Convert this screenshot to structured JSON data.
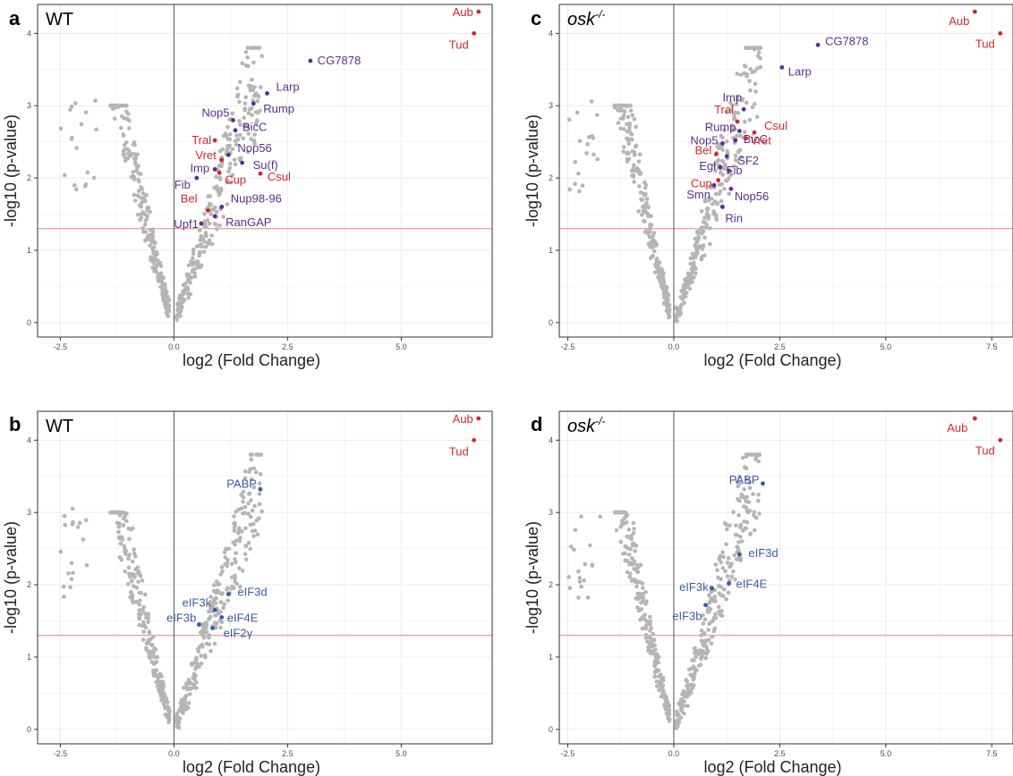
{
  "colors": {
    "point_grey": "#b5b5b5",
    "highlight_red": "#d62728",
    "highlight_purple": "#5a2d91",
    "highlight_blue": "#3a5ba8",
    "threshold_red": "#f08080",
    "grid": "#ebebeb",
    "panel_border": "#333333"
  },
  "chart_data": [
    {
      "panel": "a",
      "title": "WT",
      "type": "scatter",
      "xlabel": "log2 (Fold Change)",
      "ylabel": "-log10 (p-value)",
      "xlim": [
        -3.0,
        7.0
      ],
      "ylim": [
        -0.2,
        4.4
      ],
      "xticks": [
        "-2.5",
        "0.0",
        "2.5",
        "5.0"
      ],
      "yticks": [
        "0",
        "1",
        "2",
        "3",
        "4"
      ],
      "threshold_y": 1.3,
      "grid": true,
      "highlights": [
        {
          "label": "Aub",
          "x": 6.7,
          "y": 4.3,
          "color": "red"
        },
        {
          "label": "Tud",
          "x": 6.6,
          "y": 4.0,
          "color": "red"
        },
        {
          "label": "CG7878",
          "x": 3.0,
          "y": 3.62,
          "color": "purple"
        },
        {
          "label": "Larp",
          "x": 2.05,
          "y": 3.17,
          "color": "purple"
        },
        {
          "label": "Rump",
          "x": 1.75,
          "y": 3.03,
          "color": "purple"
        },
        {
          "label": "Nop5",
          "x": 1.3,
          "y": 2.8,
          "color": "purple"
        },
        {
          "label": "BicC",
          "x": 1.35,
          "y": 2.66,
          "color": "purple"
        },
        {
          "label": "Tral",
          "x": 0.9,
          "y": 2.52,
          "color": "red"
        },
        {
          "label": "Nop56",
          "x": 1.2,
          "y": 2.32,
          "color": "purple"
        },
        {
          "label": "Vret",
          "x": 1.05,
          "y": 2.25,
          "color": "red"
        },
        {
          "label": "Su(f)",
          "x": 1.5,
          "y": 2.21,
          "color": "purple"
        },
        {
          "label": "Imp",
          "x": 0.9,
          "y": 2.12,
          "color": "purple"
        },
        {
          "label": "Fib",
          "x": 0.5,
          "y": 2.0,
          "color": "purple"
        },
        {
          "label": "Cup",
          "x": 1.0,
          "y": 2.07,
          "color": "red"
        },
        {
          "label": "Csul",
          "x": 1.9,
          "y": 2.06,
          "color": "red"
        },
        {
          "label": "Bel",
          "x": 0.75,
          "y": 1.55,
          "color": "red"
        },
        {
          "label": "Nup98-96",
          "x": 1.05,
          "y": 1.6,
          "color": "purple"
        },
        {
          "label": "Upf1",
          "x": 0.6,
          "y": 1.37,
          "color": "purple"
        },
        {
          "label": "RanGAP",
          "x": 0.9,
          "y": 1.47,
          "color": "purple"
        }
      ]
    },
    {
      "panel": "b",
      "title": "WT",
      "type": "scatter",
      "xlabel": "log2 (Fold Change)",
      "ylabel": "-log10 (p-value)",
      "xlim": [
        -3.0,
        7.0
      ],
      "ylim": [
        -0.2,
        4.4
      ],
      "xticks": [
        "-2.5",
        "0.0",
        "2.5",
        "5.0"
      ],
      "yticks": [
        "0",
        "1",
        "2",
        "3",
        "4"
      ],
      "threshold_y": 1.3,
      "grid": true,
      "highlights": [
        {
          "label": "Aub",
          "x": 6.7,
          "y": 4.3,
          "color": "red"
        },
        {
          "label": "Tud",
          "x": 6.6,
          "y": 4.0,
          "color": "red"
        },
        {
          "label": "PABP",
          "x": 1.9,
          "y": 3.32,
          "color": "blue"
        },
        {
          "label": "eIF3d",
          "x": 1.2,
          "y": 1.87,
          "color": "blue"
        },
        {
          "label": "eIF3k",
          "x": 0.9,
          "y": 1.65,
          "color": "blue"
        },
        {
          "label": "eIF4E",
          "x": 1.05,
          "y": 1.55,
          "color": "blue"
        },
        {
          "label": "eIF3b",
          "x": 0.55,
          "y": 1.45,
          "color": "blue"
        },
        {
          "label": "eIF2γ",
          "x": 0.85,
          "y": 1.4,
          "color": "blue"
        }
      ]
    },
    {
      "panel": "c",
      "title": "osk-/-",
      "type": "scatter",
      "xlabel": "log2 (Fold Change)",
      "ylabel": "-log10 (p-value)",
      "xlim": [
        -2.7,
        8.0
      ],
      "ylim": [
        -0.2,
        4.4
      ],
      "xticks": [
        "-2.5",
        "0.0",
        "2.5",
        "5.0",
        "7.5"
      ],
      "yticks": [
        "0",
        "1",
        "2",
        "3",
        "4"
      ],
      "threshold_y": 1.3,
      "grid": true,
      "highlights": [
        {
          "label": "Aub",
          "x": 7.1,
          "y": 4.3,
          "color": "red"
        },
        {
          "label": "Tud",
          "x": 7.7,
          "y": 4.0,
          "color": "red"
        },
        {
          "label": "CG7878",
          "x": 3.4,
          "y": 3.84,
          "color": "purple"
        },
        {
          "label": "Larp",
          "x": 2.55,
          "y": 3.53,
          "color": "purple"
        },
        {
          "label": "Imp",
          "x": 1.65,
          "y": 2.95,
          "color": "purple"
        },
        {
          "label": "Tral",
          "x": 1.5,
          "y": 2.78,
          "color": "red"
        },
        {
          "label": "Rump",
          "x": 1.55,
          "y": 2.65,
          "color": "purple"
        },
        {
          "label": "Csul",
          "x": 1.9,
          "y": 2.63,
          "color": "red"
        },
        {
          "label": "BicC",
          "x": 1.45,
          "y": 2.52,
          "color": "purple"
        },
        {
          "label": "Vret",
          "x": 1.7,
          "y": 2.55,
          "color": "red"
        },
        {
          "label": "Nop5",
          "x": 1.15,
          "y": 2.48,
          "color": "purple"
        },
        {
          "label": "Bel",
          "x": 1.0,
          "y": 2.33,
          "color": "red"
        },
        {
          "label": "SF2",
          "x": 1.25,
          "y": 2.3,
          "color": "purple"
        },
        {
          "label": "Egl",
          "x": 1.1,
          "y": 2.15,
          "color": "purple"
        },
        {
          "label": "Fib",
          "x": 1.3,
          "y": 2.1,
          "color": "purple"
        },
        {
          "label": "Cup",
          "x": 1.05,
          "y": 1.97,
          "color": "red"
        },
        {
          "label": "Smn",
          "x": 0.95,
          "y": 1.9,
          "color": "purple"
        },
        {
          "label": "Nop56",
          "x": 1.35,
          "y": 1.85,
          "color": "purple"
        },
        {
          "label": "Rin",
          "x": 1.15,
          "y": 1.6,
          "color": "purple"
        }
      ]
    },
    {
      "panel": "d",
      "title": "osk-/-",
      "type": "scatter",
      "xlabel": "log2 (Fold Change)",
      "ylabel": "-log10 (p-value)",
      "xlim": [
        -2.7,
        8.0
      ],
      "ylim": [
        -0.2,
        4.4
      ],
      "xticks": [
        "-2.5",
        "0.0",
        "2.5",
        "5.0",
        "7.5"
      ],
      "yticks": [
        "0",
        "1",
        "2",
        "3",
        "4"
      ],
      "threshold_y": 1.3,
      "grid": true,
      "highlights": [
        {
          "label": "Aub",
          "x": 7.1,
          "y": 4.3,
          "color": "red"
        },
        {
          "label": "Tud",
          "x": 7.7,
          "y": 4.0,
          "color": "red"
        },
        {
          "label": "PABP",
          "x": 2.1,
          "y": 3.4,
          "color": "blue"
        },
        {
          "label": "eIF3d",
          "x": 1.55,
          "y": 2.42,
          "color": "blue"
        },
        {
          "label": "eIF3k",
          "x": 0.9,
          "y": 1.95,
          "color": "blue"
        },
        {
          "label": "eIF4E",
          "x": 1.3,
          "y": 2.02,
          "color": "blue"
        },
        {
          "label": "eIF3b",
          "x": 0.75,
          "y": 1.72,
          "color": "blue"
        }
      ]
    }
  ]
}
